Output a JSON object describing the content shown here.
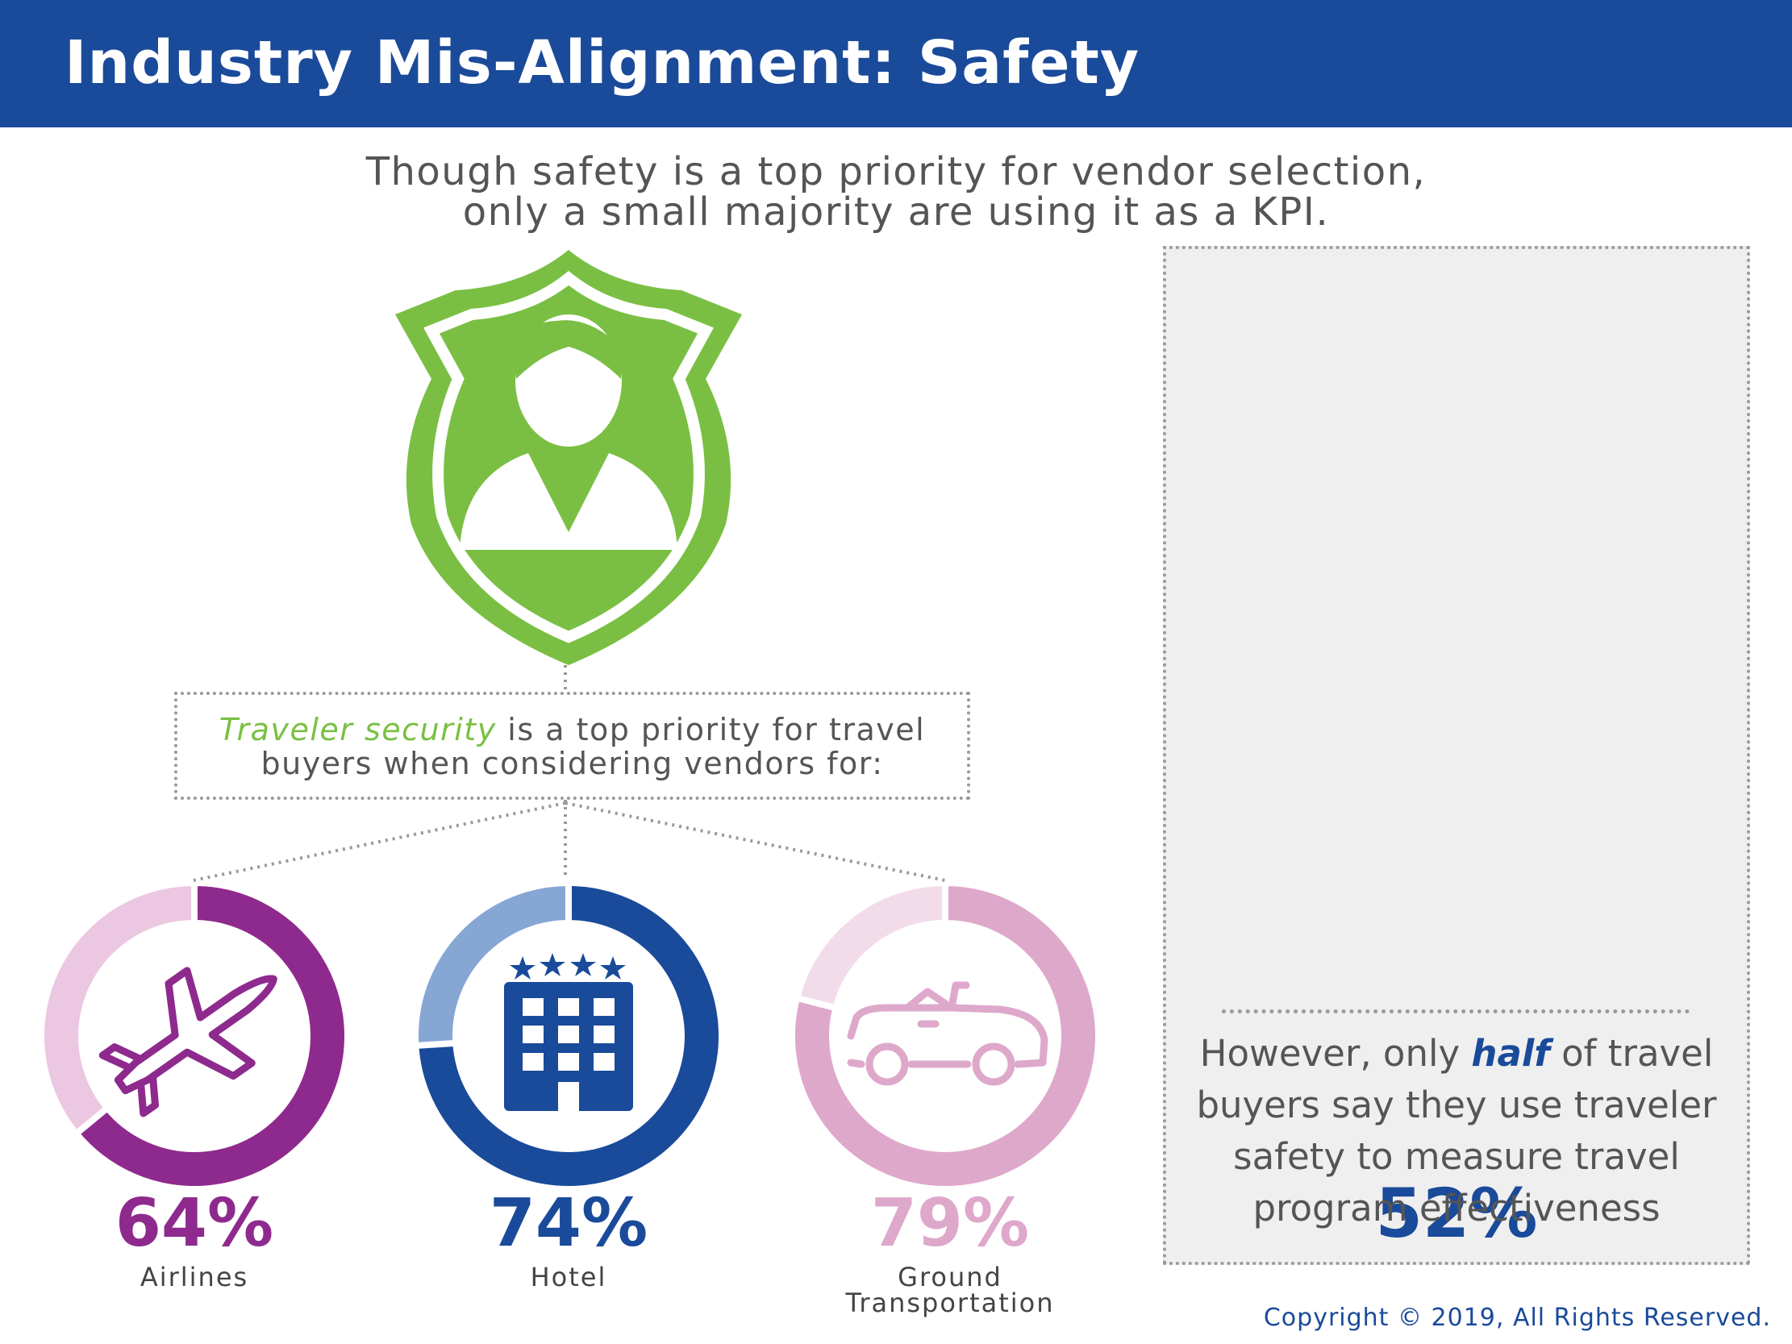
{
  "header": {
    "title": "Industry Mis-Alignment: Safety"
  },
  "subtitle": {
    "line1": "Though safety is a top priority for vendor selection,",
    "line2": "only a small majority are using it as a KPI."
  },
  "priority_box": {
    "highlight": "Traveler security",
    "line1_rest": " is a top priority for travel",
    "line2": "buyers when considering vendors for:"
  },
  "kpi": {
    "value": "52%",
    "caption_pre": "However, only ",
    "caption_highlight": "half",
    "caption_post": " of travel",
    "caption_line2": "buyers say they use traveler",
    "caption_line3": "safety to measure travel",
    "caption_line4": "program effectiveness",
    "colors": {
      "upper": "#86a6d4",
      "lower": "#1a4a9a"
    }
  },
  "chart_data": {
    "type": "pie",
    "series": [
      {
        "label": "Airlines",
        "value_text": "64%",
        "value": 64,
        "icon": "airplane-icon",
        "color": "#8e2a8e",
        "track_color": "#ecc7e1"
      },
      {
        "label": "Hotel",
        "value_text": "74%",
        "value": 74,
        "icon": "hotel-icon",
        "color": "#1a4a9a",
        "track_color": "#86a6d4"
      },
      {
        "label_lines": [
          "Ground",
          "Transportation"
        ],
        "value_text": "79%",
        "value": 79,
        "icon": "car-icon",
        "color": "#dea8cb",
        "track_color": "#f3dcea"
      }
    ]
  },
  "footer": {
    "copyright": "Copyright © 2019, All Rights Reserved."
  }
}
